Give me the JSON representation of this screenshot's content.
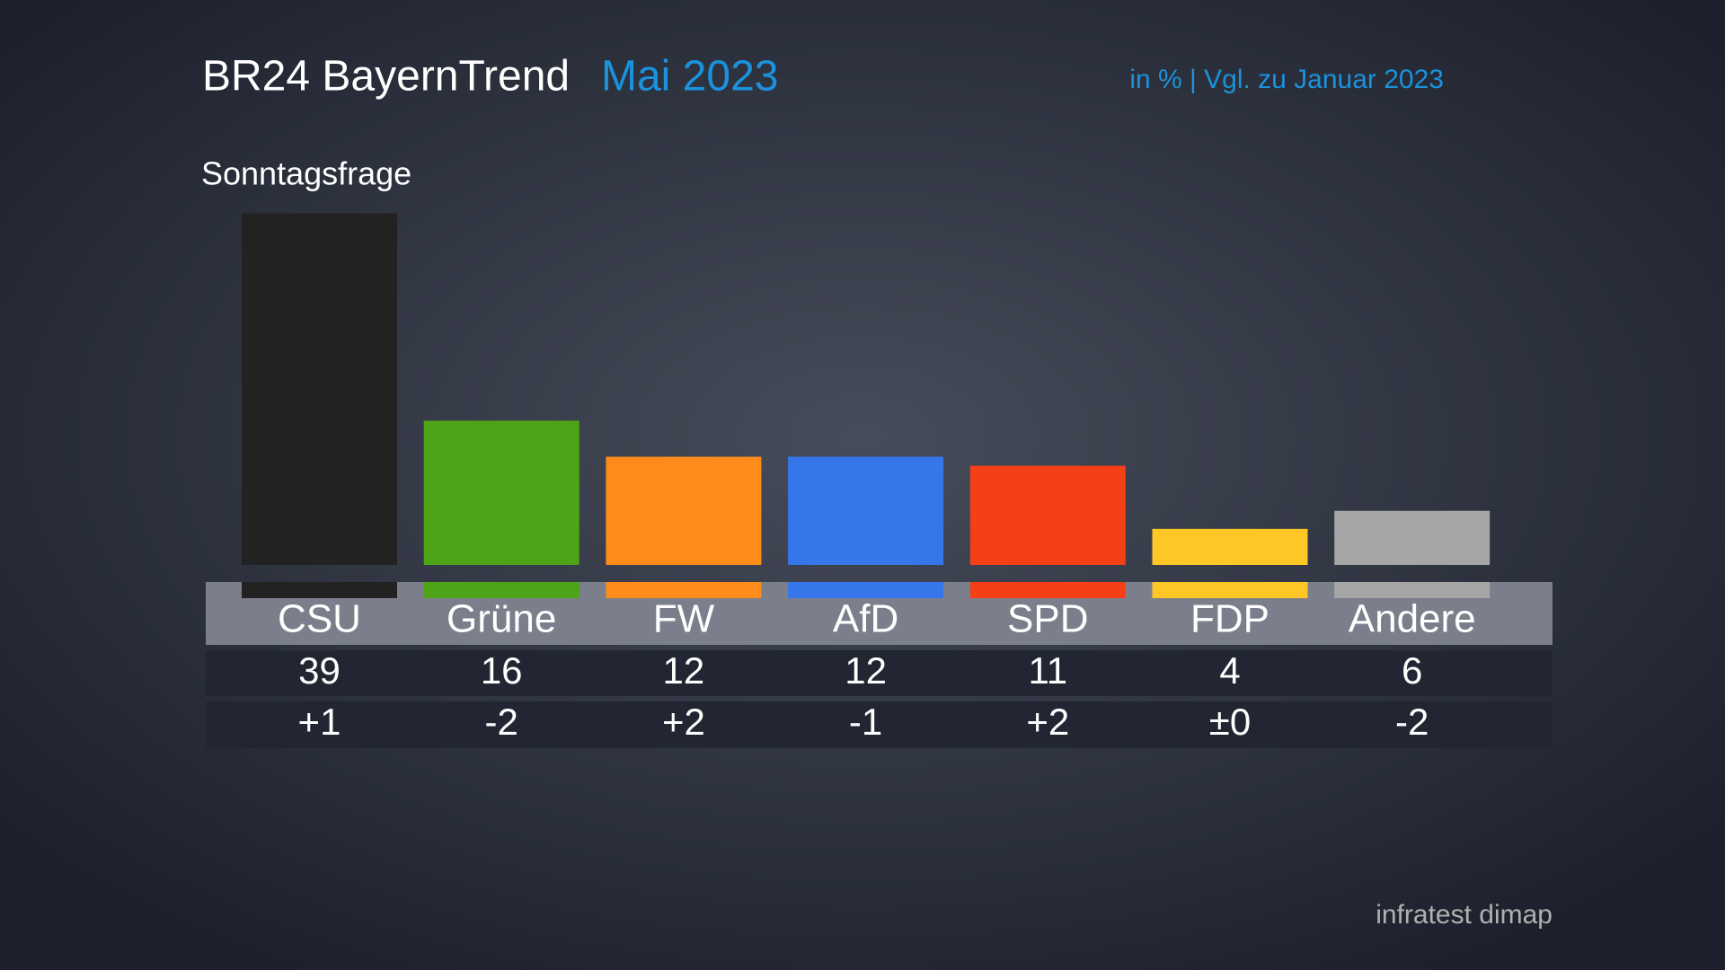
{
  "chart_data": {
    "type": "bar",
    "title": "BR24 BayernTrend",
    "title_highlight": "Mai 2023",
    "subtitle": "in % | Vgl. zu Januar 2023",
    "chart_label": "Sonntagsfrage",
    "source": "infratest dimap",
    "categories": [
      "CSU",
      "Grüne",
      "FW",
      "AfD",
      "SPD",
      "FDP",
      "Andere"
    ],
    "values": [
      39,
      16,
      12,
      12,
      11,
      4,
      6
    ],
    "changes": [
      "+1",
      "-2",
      "+2",
      "-1",
      "+2",
      "±0",
      "-2"
    ],
    "colors": [
      "#222222",
      "#4ea316",
      "#ff8c1a",
      "#3577ea",
      "#f43f17",
      "#ffc726",
      "#a6a6a6"
    ]
  }
}
